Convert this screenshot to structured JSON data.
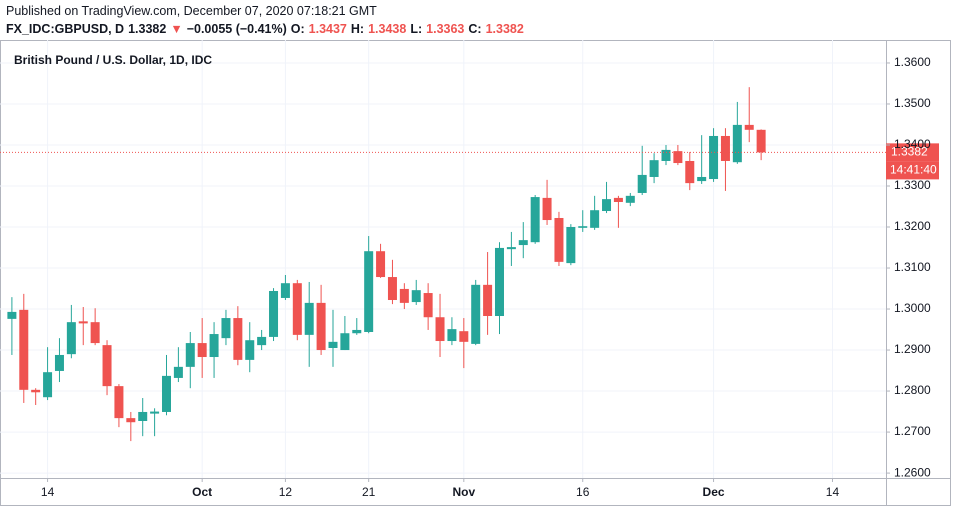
{
  "header": {
    "published": "Published on TradingView.com, December 07, 2020 07:18:21 GMT",
    "symbol": "FX_IDC:GBPUSD, D",
    "last": "1.3382",
    "arrow": "▼",
    "change": "−0.0055 (−0.41%)",
    "o_label": "O:",
    "o": "1.3437",
    "h_label": "H:",
    "h": "1.3438",
    "l_label": "L:",
    "l": "1.3363",
    "c_label": "C:",
    "c": "1.3382"
  },
  "chart_data": {
    "type": "candlestick",
    "title": "British Pound / U.S. Dollar, 1D, IDC",
    "up_color": "#26a69a",
    "down_color": "#ef5350",
    "grid": true,
    "xlim": [
      -1,
      73.5
    ],
    "xticks": [
      {
        "value": 3,
        "label": "14"
      },
      {
        "value": 16,
        "label": "Oct"
      },
      {
        "value": 23,
        "label": "12"
      },
      {
        "value": 30,
        "label": "21"
      },
      {
        "value": 38,
        "label": "Nov"
      },
      {
        "value": 48,
        "label": "16"
      },
      {
        "value": 59,
        "label": "Dec"
      },
      {
        "value": 69,
        "label": "14"
      }
    ],
    "ylim": [
      1.2588,
      1.3656
    ],
    "yticks": [
      {
        "value": 1.26,
        "label": "1.2600"
      },
      {
        "value": 1.27,
        "label": "1.2700"
      },
      {
        "value": 1.28,
        "label": "1.2800"
      },
      {
        "value": 1.29,
        "label": "1.2900"
      },
      {
        "value": 1.3,
        "label": "1.3000"
      },
      {
        "value": 1.31,
        "label": "1.3100"
      },
      {
        "value": 1.32,
        "label": "1.3200"
      },
      {
        "value": 1.33,
        "label": "1.3300"
      },
      {
        "value": 1.34,
        "label": "1.3400"
      },
      {
        "value": 1.35,
        "label": "1.3500"
      },
      {
        "value": 1.36,
        "label": "1.3600"
      }
    ],
    "last_price": {
      "value": 1.3382,
      "label": "1.3382"
    },
    "countdown": "14:41:40",
    "open": [
      1.2976,
      1.2998,
      1.2803,
      1.2785,
      1.2849,
      1.289,
      1.297,
      1.2968,
      1.2912,
      1.2812,
      1.2734,
      1.2727,
      1.2745,
      1.2749,
      1.2832,
      1.2859,
      1.2917,
      1.2883,
      1.2929,
      1.2978,
      1.2876,
      1.2912,
      1.2932,
      1.3027,
      1.3063,
      1.2937,
      1.3015,
      1.2905,
      1.29,
      1.2941,
      1.2944,
      1.3141,
      1.3078,
      1.3049,
      1.3017,
      1.3039,
      1.298,
      1.2922,
      1.2946,
      1.2915,
      1.3059,
      1.2983,
      1.3146,
      1.3156,
      1.3163,
      1.3271,
      1.3222,
      1.3112,
      1.3198,
      1.3198,
      1.3239,
      1.3271,
      1.3259,
      1.3283,
      1.3322,
      1.3361,
      1.3385,
      1.3361,
      1.3312,
      1.3317,
      1.3422,
      1.3358,
      1.3449,
      1.3437
    ],
    "high": [
      1.3029,
      1.3037,
      1.2807,
      1.2907,
      1.2929,
      1.301,
      1.3005,
      1.3002,
      1.2924,
      1.2817,
      1.2749,
      1.2783,
      1.2758,
      1.2888,
      1.2907,
      1.2944,
      1.2978,
      1.2968,
      1.2998,
      1.3007,
      1.2968,
      1.2949,
      1.3051,
      1.3083,
      1.3071,
      1.3066,
      1.3059,
      1.2998,
      1.2983,
      1.2978,
      1.3178,
      1.3159,
      1.312,
      1.3063,
      1.3071,
      1.3063,
      1.3037,
      1.298,
      1.2978,
      1.3071,
      1.3139,
      1.3163,
      1.3188,
      1.3212,
      1.3278,
      1.3315,
      1.3237,
      1.3207,
      1.3241,
      1.3276,
      1.331,
      1.3276,
      1.3283,
      1.3398,
      1.338,
      1.34,
      1.34,
      1.3383,
      1.3424,
      1.3441,
      1.3441,
      1.3505,
      1.3541,
      1.3438
    ],
    "low": [
      1.2888,
      1.2771,
      1.2766,
      1.2778,
      1.2822,
      1.288,
      1.2912,
      1.2912,
      1.279,
      1.2712,
      1.2678,
      1.269,
      1.269,
      1.2741,
      1.2822,
      1.2807,
      1.2832,
      1.2832,
      1.2912,
      1.2863,
      1.2846,
      1.29,
      1.2922,
      1.3022,
      1.2924,
      1.2859,
      1.2888,
      1.2859,
      1.29,
      1.2937,
      1.2941,
      1.3076,
      1.3012,
      1.3,
      1.301,
      1.2949,
      1.2883,
      1.2912,
      1.2856,
      1.2912,
      1.2937,
      1.2939,
      1.3105,
      1.3124,
      1.3159,
      1.3205,
      1.3105,
      1.3107,
      1.3188,
      1.3193,
      1.3234,
      1.3198,
      1.3251,
      1.3278,
      1.3307,
      1.3351,
      1.3351,
      1.329,
      1.3305,
      1.331,
      1.3288,
      1.3354,
      1.3407,
      1.3363
    ],
    "close": [
      1.2993,
      1.2803,
      1.2797,
      1.2846,
      1.2888,
      1.2968,
      1.2965,
      1.2917,
      1.2812,
      1.2734,
      1.2724,
      1.2749,
      1.275,
      1.2837,
      1.2859,
      1.2917,
      1.2883,
      1.2939,
      1.2978,
      1.2876,
      1.2924,
      1.2932,
      1.3044,
      1.3063,
      1.2937,
      1.3015,
      1.29,
      1.292,
      1.2941,
      1.2949,
      1.3141,
      1.3078,
      1.3022,
      1.3015,
      1.3046,
      1.298,
      1.2922,
      1.2951,
      1.292,
      1.3059,
      1.2983,
      1.3149,
      1.3151,
      1.3168,
      1.3273,
      1.3217,
      1.3115,
      1.32,
      1.3202,
      1.3241,
      1.3268,
      1.3261,
      1.3276,
      1.3327,
      1.3363,
      1.3388,
      1.3356,
      1.3307,
      1.3322,
      1.3422,
      1.3361,
      1.3449,
      1.3437,
      1.3382
    ]
  }
}
